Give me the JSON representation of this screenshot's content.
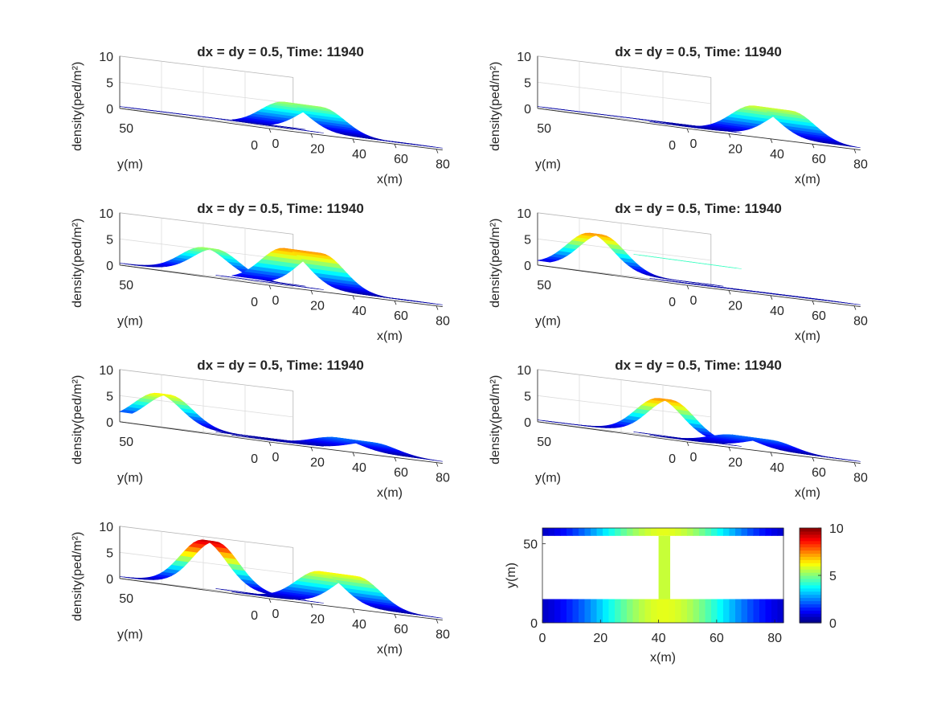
{
  "figure": {
    "panels": [
      {
        "title": "dx = dy = 0.5, Time: 11940"
      },
      {
        "title": "dx = dy = 0.5, Time: 11940"
      },
      {
        "title": "dx = dy = 0.5, Time: 11940"
      },
      {
        "title": "dx = dy = 0.5, Time: 11940"
      },
      {
        "title": "dx = dy = 0.5, Time: 11940"
      },
      {
        "title": "dx = dy = 0.5, Time: 11940"
      },
      {
        "title": ""
      }
    ]
  },
  "colors": {
    "axis": "#262626",
    "grid": "#dcdcdc",
    "background": "#ffffff"
  },
  "chart_data": [
    {
      "type": "surface",
      "title": "dx = dy = 0.5, Time: 11940",
      "xlabel": "x(m)",
      "ylabel": "y(m)",
      "zlabel": "density(ped/m^2)",
      "xlim": [
        0,
        80
      ],
      "ylim": [
        0,
        60
      ],
      "zlim": [
        0,
        10
      ],
      "xticks": [
        "0",
        "20",
        "40",
        "60",
        "80"
      ],
      "yticks": [
        "0",
        "50"
      ],
      "zticks": [
        "0",
        "5",
        "10"
      ],
      "peaks": [
        {
          "corridor": "lower",
          "x": 25,
          "height": 5
        }
      ]
    },
    {
      "type": "surface",
      "title": "dx = dy = 0.5, Time: 11940",
      "xlabel": "x(m)",
      "ylabel": "y(m)",
      "zlabel": "density(ped/m^2)",
      "xlim": [
        0,
        80
      ],
      "ylim": [
        0,
        60
      ],
      "zlim": [
        0,
        10
      ],
      "xticks": [
        "0",
        "20",
        "40",
        "60",
        "80"
      ],
      "yticks": [
        "0",
        "50"
      ],
      "zticks": [
        "0",
        "5",
        "10"
      ],
      "peaks": [
        {
          "corridor": "lower",
          "x": 50,
          "height": 5.5
        }
      ]
    },
    {
      "type": "surface",
      "title": "dx = dy = 0.5, Time: 11940",
      "xlabel": "x(m)",
      "ylabel": "y(m)",
      "zlabel": "density(ped/m^2)",
      "xlim": [
        0,
        80
      ],
      "ylim": [
        0,
        60
      ],
      "zlim": [
        0,
        10
      ],
      "xticks": [
        "0",
        "20",
        "40",
        "60",
        "80"
      ],
      "yticks": [
        "0",
        "50"
      ],
      "zticks": [
        "0",
        "5",
        "10"
      ],
      "peaks": [
        {
          "corridor": "upper",
          "x": 40,
          "height": 5
        },
        {
          "corridor": "lower",
          "x": 25,
          "height": 7
        }
      ]
    },
    {
      "type": "surface",
      "title": "dx = dy = 0.5, Time: 11940",
      "xlabel": "x(m)",
      "ylabel": "y(m)",
      "zlabel": "density(ped/m^2)",
      "xlim": [
        0,
        80
      ],
      "ylim": [
        0,
        60
      ],
      "zlim": [
        0,
        10
      ],
      "xticks": [
        "0",
        "20",
        "40",
        "60",
        "80"
      ],
      "yticks": [
        "0",
        "50"
      ],
      "zticks": [
        "0",
        "5",
        "10"
      ],
      "peaks": [
        {
          "corridor": "upper",
          "x": 25,
          "height": 7
        },
        {
          "corridor": "link",
          "x": 40,
          "height": 4
        }
      ]
    },
    {
      "type": "surface",
      "title": "dx = dy = 0.5, Time: 11940",
      "xlabel": "x(m)",
      "ylabel": "y(m)",
      "zlabel": "density(ped/m^2)",
      "xlim": [
        0,
        80
      ],
      "ylim": [
        0,
        60
      ],
      "zlim": [
        0,
        10
      ],
      "xticks": [
        "0",
        "20",
        "40",
        "60",
        "80"
      ],
      "yticks": [
        "0",
        "50"
      ],
      "zticks": [
        "0",
        "5",
        "10"
      ],
      "peaks": [
        {
          "corridor": "upper",
          "x": 18,
          "height": 6
        },
        {
          "corridor": "lower",
          "x": 50,
          "height": 2
        }
      ]
    },
    {
      "type": "surface",
      "title": "dx = dy = 0.5, Time: 11940",
      "xlabel": "x(m)",
      "ylabel": "y(m)",
      "zlabel": "density(ped/m^2)",
      "xlim": [
        0,
        80
      ],
      "ylim": [
        0,
        60
      ],
      "zlim": [
        0,
        10
      ],
      "xticks": [
        "0",
        "20",
        "40",
        "60",
        "80"
      ],
      "yticks": [
        "0",
        "50"
      ],
      "zticks": [
        "0",
        "5",
        "10"
      ],
      "peaks": [
        {
          "corridor": "upper",
          "x": 58,
          "height": 7
        },
        {
          "corridor": "lower",
          "x": 40,
          "height": 2
        }
      ]
    },
    {
      "type": "surface",
      "title": "",
      "xlabel": "x(m)",
      "ylabel": "y(m)",
      "zlabel": "density(ped/m^2)",
      "xlim": [
        0,
        80
      ],
      "ylim": [
        0,
        60
      ],
      "zlim": [
        0,
        10
      ],
      "xticks": [
        "0",
        "20",
        "40",
        "60",
        "80"
      ],
      "yticks": [
        "0",
        "50"
      ],
      "zticks": [
        "0",
        "5",
        "10"
      ],
      "peaks": [
        {
          "corridor": "upper",
          "x": 40,
          "height": 9
        },
        {
          "corridor": "lower",
          "x": 42,
          "height": 6
        }
      ]
    },
    {
      "type": "heatmap",
      "xlabel": "x(m)",
      "ylabel": "y(m)",
      "xlim": [
        0,
        83
      ],
      "ylim": [
        0,
        60
      ],
      "xticks": [
        "0",
        "20",
        "40",
        "60",
        "80"
      ],
      "yticks": [
        "0",
        "50"
      ],
      "colorbar": {
        "range": [
          0,
          10
        ],
        "ticks": [
          "0",
          "5",
          "10"
        ],
        "colormap": "jet"
      },
      "regions": [
        {
          "name": "upper corridor",
          "x": [
            0,
            83
          ],
          "y": [
            55,
            60
          ],
          "max_density": 6
        },
        {
          "name": "link corridor",
          "x": [
            40,
            44
          ],
          "y": [
            15,
            55
          ],
          "max_density": 6
        },
        {
          "name": "lower corridor",
          "x": [
            0,
            83
          ],
          "y": [
            0,
            15
          ],
          "max_density": 6
        }
      ]
    }
  ]
}
